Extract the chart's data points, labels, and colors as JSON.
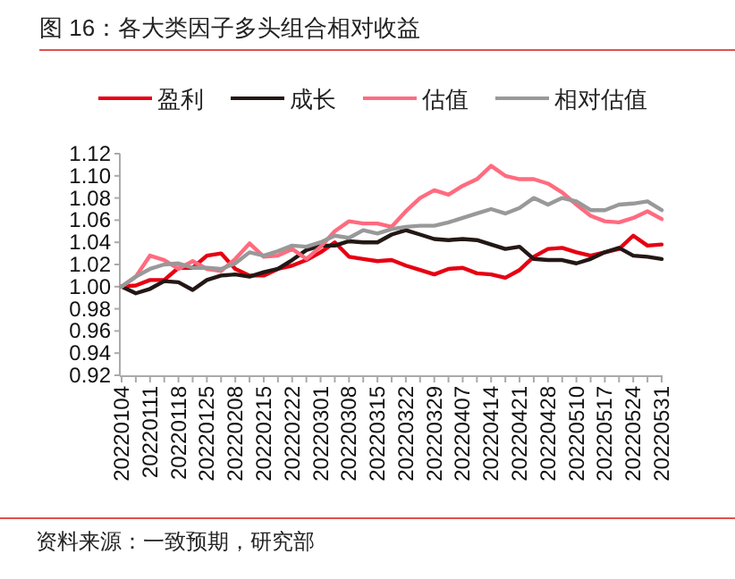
{
  "chart_data": {
    "type": "line",
    "title": "图 16：各大类因子多头组合相对收益",
    "categories": [
      "20220104",
      null,
      "20220111",
      null,
      "20220118",
      null,
      "20220125",
      null,
      "20220208",
      null,
      "20220215",
      null,
      "20220222",
      null,
      "20220301",
      null,
      "20220308",
      null,
      "20220315",
      null,
      "20220322",
      null,
      "20220329",
      null,
      "20220407",
      null,
      "20220414",
      null,
      "20220421",
      null,
      "20220428",
      null,
      "20220510",
      null,
      "20220517",
      null,
      "20220524",
      null,
      "20220531"
    ],
    "series": [
      {
        "name": "盈利",
        "color": "#e60012",
        "values": [
          1.0,
          1.001,
          1.006,
          1.006,
          1.017,
          1.017,
          1.028,
          1.03,
          1.016,
          1.01,
          1.01,
          1.016,
          1.019,
          1.024,
          1.031,
          1.04,
          1.027,
          1.025,
          1.023,
          1.024,
          1.019,
          1.015,
          1.011,
          1.016,
          1.017,
          1.012,
          1.011,
          1.008,
          1.015,
          1.027,
          1.034,
          1.035,
          1.031,
          1.028,
          1.031,
          1.034,
          1.046,
          1.037,
          1.038
        ]
      },
      {
        "name": "成长",
        "color": "#231815",
        "values": [
          1.0,
          0.994,
          0.998,
          1.005,
          1.004,
          0.997,
          1.006,
          1.01,
          1.011,
          1.009,
          1.013,
          1.016,
          1.024,
          1.033,
          1.037,
          1.037,
          1.041,
          1.04,
          1.04,
          1.047,
          1.051,
          1.047,
          1.043,
          1.042,
          1.043,
          1.042,
          1.038,
          1.034,
          1.036,
          1.025,
          1.024,
          1.024,
          1.021,
          1.025,
          1.031,
          1.035,
          1.028,
          1.027,
          1.025
        ]
      },
      {
        "name": "估值",
        "color": "#ff6b7f",
        "values": [
          1.0,
          1.009,
          1.028,
          1.024,
          1.016,
          1.023,
          1.016,
          1.014,
          1.025,
          1.039,
          1.027,
          1.028,
          1.034,
          1.025,
          1.036,
          1.05,
          1.059,
          1.057,
          1.057,
          1.054,
          1.068,
          1.08,
          1.087,
          1.083,
          1.091,
          1.097,
          1.109,
          1.1,
          1.097,
          1.097,
          1.093,
          1.085,
          1.074,
          1.064,
          1.059,
          1.058,
          1.062,
          1.068,
          1.061
        ]
      },
      {
        "name": "相对估值",
        "color": "#999999",
        "values": [
          1.0,
          1.009,
          1.016,
          1.02,
          1.021,
          1.017,
          1.017,
          1.016,
          1.021,
          1.031,
          1.028,
          1.032,
          1.037,
          1.036,
          1.04,
          1.046,
          1.044,
          1.051,
          1.048,
          1.052,
          1.054,
          1.055,
          1.055,
          1.058,
          1.062,
          1.066,
          1.07,
          1.066,
          1.071,
          1.08,
          1.074,
          1.08,
          1.077,
          1.069,
          1.069,
          1.074,
          1.075,
          1.077,
          1.069
        ]
      }
    ],
    "ylim": [
      0.92,
      1.12
    ],
    "yticks": [
      0.92,
      0.94,
      0.96,
      0.98,
      {
        "value": 1,
        "label": "1.00"
      },
      1.02,
      1.04,
      1.06,
      1.08,
      {
        "value": 1.1,
        "label": "1.10"
      },
      1.12
    ],
    "legend": "top",
    "annotations": [
      "资料来源：一致预期，研究部"
    ]
  }
}
